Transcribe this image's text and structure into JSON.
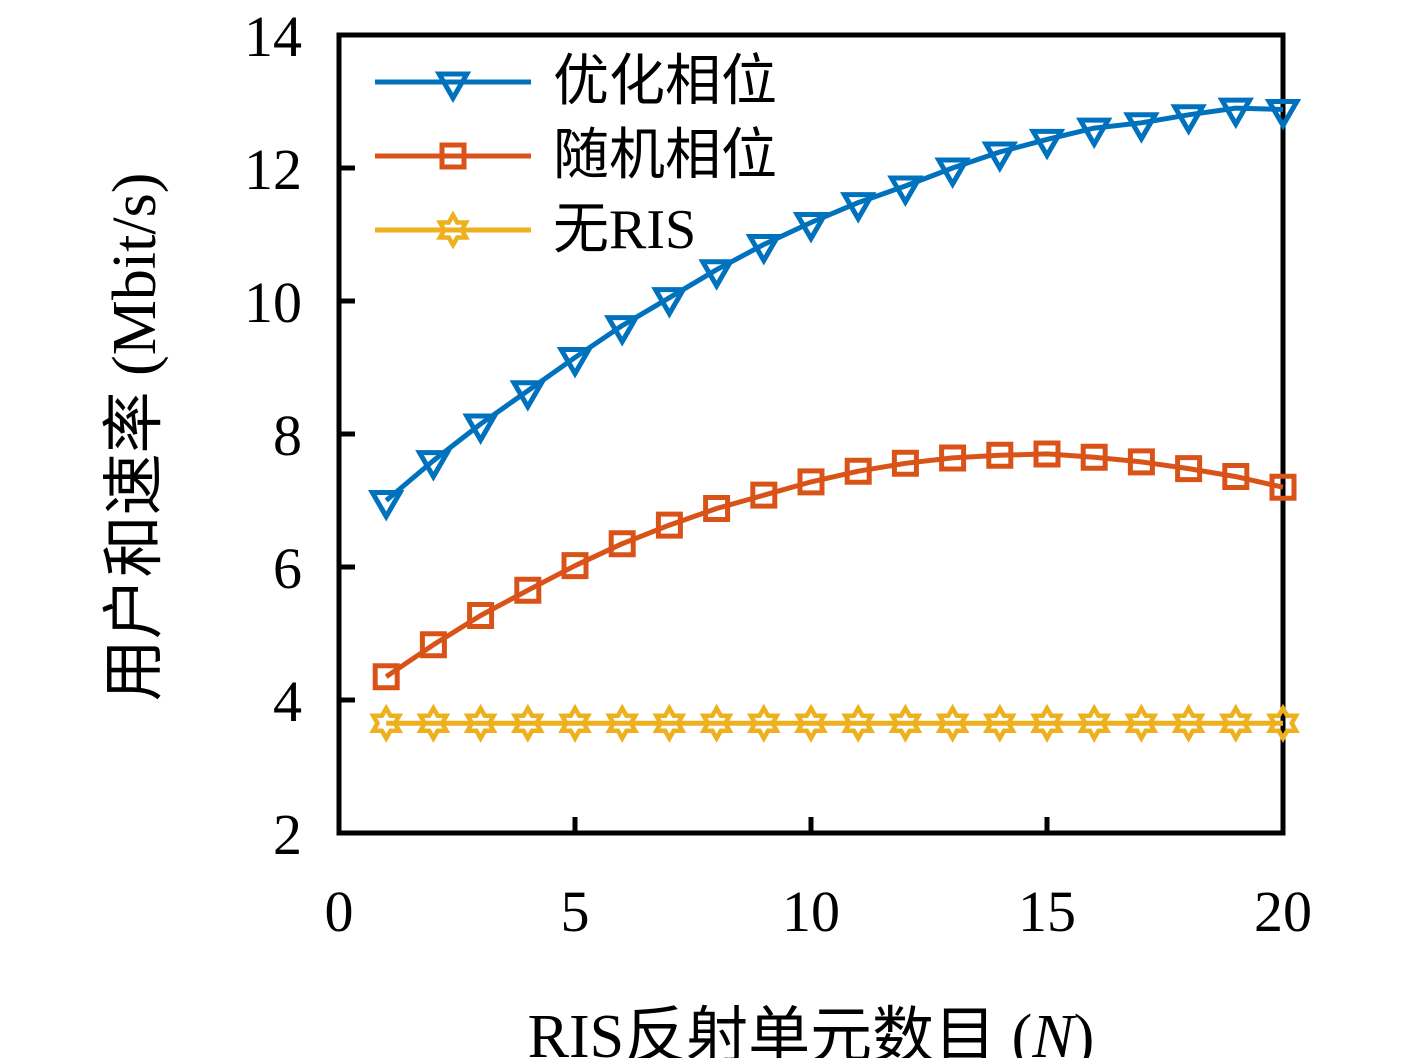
{
  "figure": {
    "background": "#ffffff",
    "axis_color": "#000000"
  },
  "chart_data": {
    "type": "line",
    "x": [
      1,
      2,
      3,
      4,
      5,
      6,
      7,
      8,
      9,
      10,
      11,
      12,
      13,
      14,
      15,
      16,
      17,
      18,
      19,
      20
    ],
    "series": [
      {
        "name": "优化相位",
        "slug": "optimized-phase",
        "color": "#0072BD",
        "marker": "triangle-down",
        "values": [
          7.0,
          7.6,
          8.15,
          8.65,
          9.15,
          9.63,
          10.05,
          10.47,
          10.85,
          11.18,
          11.48,
          11.73,
          12.0,
          12.24,
          12.43,
          12.6,
          12.68,
          12.8,
          12.9,
          12.88
        ]
      },
      {
        "name": "随机相位",
        "slug": "random-phase",
        "color": "#D95319",
        "marker": "square",
        "values": [
          4.35,
          4.83,
          5.27,
          5.65,
          6.02,
          6.35,
          6.63,
          6.88,
          7.08,
          7.28,
          7.44,
          7.56,
          7.64,
          7.68,
          7.7,
          7.65,
          7.58,
          7.48,
          7.36,
          7.2
        ]
      },
      {
        "name": "无RIS",
        "slug": "no-ris",
        "color": "#EDB120",
        "marker": "hexagram",
        "values": [
          3.65,
          3.65,
          3.65,
          3.65,
          3.65,
          3.65,
          3.65,
          3.65,
          3.65,
          3.65,
          3.65,
          3.65,
          3.65,
          3.65,
          3.65,
          3.65,
          3.65,
          3.65,
          3.65,
          3.65
        ]
      }
    ],
    "xlabel": {
      "prefix": "RIS反射单元数目 (",
      "var": "N",
      "suffix": ")"
    },
    "ylabel": "用户和速率 (Mbit/s)",
    "xlim": [
      0,
      20
    ],
    "ylim": [
      2,
      14
    ],
    "xticks": [
      0,
      5,
      10,
      15,
      20
    ],
    "yticks": [
      2,
      4,
      6,
      8,
      10,
      12,
      14
    ],
    "grid": false,
    "legend_position": "top-left-inside"
  }
}
